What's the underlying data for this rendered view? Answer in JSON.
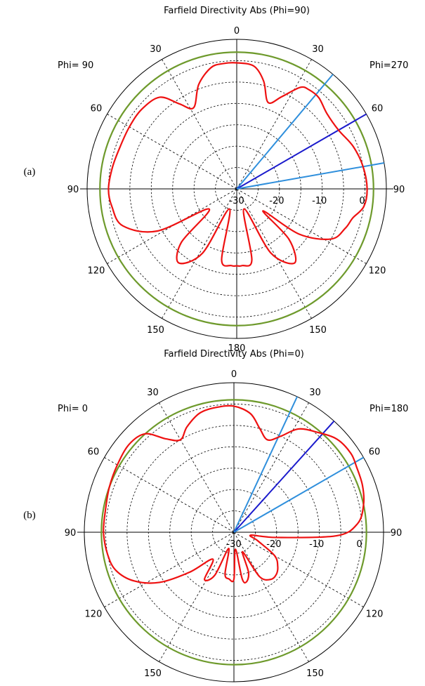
{
  "chart_data": [
    {
      "type": "polar",
      "panel_label": "(a)",
      "title": "Farfield Directivity Abs (Phi=90)",
      "left_label": "Phi= 90",
      "right_label": "Phi=270",
      "angle_labels": [
        "0",
        "30",
        "60",
        "90",
        "120",
        "150",
        "180",
        "150",
        "120",
        "90",
        "60",
        "30"
      ],
      "radial_labels": [
        "-30",
        "-20",
        "-10",
        "0"
      ],
      "rlim": [
        -30,
        5
      ],
      "ring_db": [
        -30,
        -25,
        -20,
        -15,
        -10,
        -5,
        0
      ],
      "reference_circle_db": 2,
      "highlight_lines": [
        {
          "angle_deg": 40,
          "color": "#2f8fdc"
        },
        {
          "angle_deg": 60,
          "color": "#1a1acc"
        },
        {
          "angle_deg": 80,
          "color": "#2f8fdc"
        }
      ],
      "pattern_color": "#ee1111",
      "circle_color": "#6e9a2c",
      "pattern": [
        {
          "theta": 0,
          "db": -0.5
        },
        {
          "theta": 8,
          "db": -1
        },
        {
          "theta": 14,
          "db": -4
        },
        {
          "theta": 20,
          "db": -8.5
        },
        {
          "theta": 26,
          "db": -6
        },
        {
          "theta": 32,
          "db": -2
        },
        {
          "theta": 36,
          "db": -1.3
        },
        {
          "theta": 42,
          "db": -1.3
        },
        {
          "theta": 50,
          "db": -2.5
        },
        {
          "theta": 60,
          "db": -2.5
        },
        {
          "theta": 70,
          "db": -1
        },
        {
          "theta": 80,
          "db": 0
        },
        {
          "theta": 90,
          "db": 0.5
        },
        {
          "theta": 98,
          "db": 0
        },
        {
          "theta": 104,
          "db": -2
        },
        {
          "theta": 110,
          "db": -3
        },
        {
          "theta": 118,
          "db": -5
        },
        {
          "theta": 126,
          "db": -12
        },
        {
          "theta": 130,
          "db": -22
        },
        {
          "theta": 134,
          "db": -13
        },
        {
          "theta": 142,
          "db": -8
        },
        {
          "theta": 152,
          "db": -13
        },
        {
          "theta": 160,
          "db": -25
        },
        {
          "theta": 168,
          "db": -13
        },
        {
          "theta": 176,
          "db": -12
        },
        {
          "theta": 180,
          "db": -12
        },
        {
          "theta": 184,
          "db": -12
        },
        {
          "theta": 192,
          "db": -13
        },
        {
          "theta": 200,
          "db": -25
        },
        {
          "theta": 208,
          "db": -13
        },
        {
          "theta": 218,
          "db": -8
        },
        {
          "theta": 226,
          "db": -12
        },
        {
          "theta": 234,
          "db": -22
        },
        {
          "theta": 242,
          "db": -9
        },
        {
          "theta": 252,
          "db": -2
        },
        {
          "theta": 262,
          "db": -0.5
        },
        {
          "theta": 270,
          "db": 0
        },
        {
          "theta": 280,
          "db": -0.5
        },
        {
          "theta": 290,
          "db": -1
        },
        {
          "theta": 300,
          "db": -1
        },
        {
          "theta": 310,
          "db": -1
        },
        {
          "theta": 320,
          "db": -2
        },
        {
          "theta": 326,
          "db": -6
        },
        {
          "theta": 332,
          "db": -8.5
        },
        {
          "theta": 340,
          "db": -4
        },
        {
          "theta": 348,
          "db": -1
        },
        {
          "theta": 354,
          "db": -0.5
        }
      ]
    },
    {
      "type": "polar",
      "panel_label": "(b)",
      "title": "Farfield Directivity Abs (Phi=0)",
      "left_label": "Phi=  0",
      "right_label": "Phi=180",
      "angle_labels": [
        "0",
        "30",
        "60",
        "90",
        "120",
        "150",
        "180",
        "150",
        "120",
        "90",
        "60",
        "30"
      ],
      "radial_labels": [
        "-30",
        "-20",
        "-10",
        "0"
      ],
      "rlim": [
        -30,
        5
      ],
      "ring_db": [
        -30,
        -25,
        -20,
        -15,
        -10,
        -5,
        0
      ],
      "reference_circle_db": 1,
      "highlight_lines": [
        {
          "angle_deg": 25,
          "color": "#2f8fdc"
        },
        {
          "angle_deg": 42,
          "color": "#1a1acc"
        },
        {
          "angle_deg": 60,
          "color": "#2f8fdc"
        }
      ],
      "pattern_color": "#ee1111",
      "circle_color": "#6e9a2c",
      "pattern": [
        {
          "theta": 0,
          "db": -0.5
        },
        {
          "theta": 8,
          "db": -2
        },
        {
          "theta": 14,
          "db": -5
        },
        {
          "theta": 20,
          "db": -7
        },
        {
          "theta": 26,
          "db": -5
        },
        {
          "theta": 32,
          "db": -1.5
        },
        {
          "theta": 40,
          "db": 0.5
        },
        {
          "theta": 48,
          "db": 2.5
        },
        {
          "theta": 56,
          "db": 3
        },
        {
          "theta": 62,
          "db": 2.5
        },
        {
          "theta": 70,
          "db": 2
        },
        {
          "theta": 78,
          "db": 1
        },
        {
          "theta": 86,
          "db": -1
        },
        {
          "theta": 92,
          "db": -6
        },
        {
          "theta": 97,
          "db": -20
        },
        {
          "theta": 100,
          "db": -26
        },
        {
          "theta": 110,
          "db": -24
        },
        {
          "theta": 120,
          "db": -19
        },
        {
          "theta": 128,
          "db": -17
        },
        {
          "theta": 135,
          "db": -16
        },
        {
          "theta": 142,
          "db": -16
        },
        {
          "theta": 150,
          "db": -18
        },
        {
          "theta": 156,
          "db": -25
        },
        {
          "theta": 160,
          "db": -20
        },
        {
          "theta": 166,
          "db": -18
        },
        {
          "theta": 170,
          "db": -19
        },
        {
          "theta": 175,
          "db": -26
        },
        {
          "theta": 180,
          "db": -19
        },
        {
          "theta": 186,
          "db": -19
        },
        {
          "theta": 192,
          "db": -20
        },
        {
          "theta": 198,
          "db": -26
        },
        {
          "theta": 204,
          "db": -19
        },
        {
          "theta": 212,
          "db": -17
        },
        {
          "theta": 218,
          "db": -22
        },
        {
          "theta": 228,
          "db": -16
        },
        {
          "theta": 236,
          "db": -9
        },
        {
          "theta": 244,
          "db": -4
        },
        {
          "theta": 252,
          "db": -1
        },
        {
          "theta": 260,
          "db": 0
        },
        {
          "theta": 270,
          "db": 0.5
        },
        {
          "theta": 280,
          "db": 0.5
        },
        {
          "theta": 290,
          "db": 1
        },
        {
          "theta": 300,
          "db": 1.5
        },
        {
          "theta": 310,
          "db": 2
        },
        {
          "theta": 318,
          "db": 1
        },
        {
          "theta": 324,
          "db": -3
        },
        {
          "theta": 330,
          "db": -5
        },
        {
          "theta": 336,
          "db": -3
        },
        {
          "theta": 344,
          "db": -1
        },
        {
          "theta": 352,
          "db": -0.5
        }
      ]
    }
  ]
}
